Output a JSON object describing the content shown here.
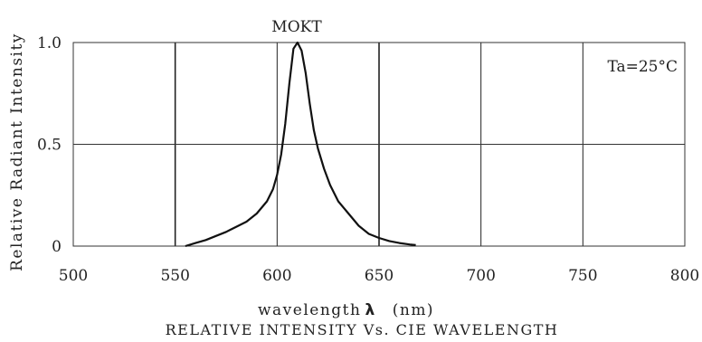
{
  "chart_data": {
    "type": "line",
    "title": "RELATIVE INTENSITY Vs. CIE WAVELENGTH",
    "series_label": "MOKT",
    "annotation": "Ta=25°C",
    "xlabel": "wavelength",
    "xlabel_symbol": "λ",
    "xlabel_unit": "(nm)",
    "ylabel": "Relative Radiant Intensity",
    "xlim": [
      500,
      800
    ],
    "ylim": [
      0,
      1.0
    ],
    "x_ticks": [
      "500",
      "550",
      "600",
      "650",
      "700",
      "750",
      "800"
    ],
    "y_ticks": [
      "0",
      "0.5",
      "1.0"
    ],
    "grid": true,
    "series": [
      {
        "x": [
          555,
          560,
          565,
          570,
          575,
          580,
          585,
          590,
          595,
          598,
          600,
          602,
          604,
          606,
          608,
          610,
          612,
          614,
          616,
          618,
          620,
          623,
          626,
          630,
          635,
          640,
          645,
          650,
          655,
          660,
          665,
          668
        ],
        "y": [
          0.0,
          0.015,
          0.03,
          0.05,
          0.07,
          0.095,
          0.12,
          0.16,
          0.22,
          0.28,
          0.35,
          0.45,
          0.6,
          0.8,
          0.97,
          1.0,
          0.96,
          0.85,
          0.7,
          0.57,
          0.48,
          0.38,
          0.3,
          0.22,
          0.16,
          0.1,
          0.06,
          0.04,
          0.025,
          0.015,
          0.008,
          0.005
        ]
      }
    ]
  }
}
